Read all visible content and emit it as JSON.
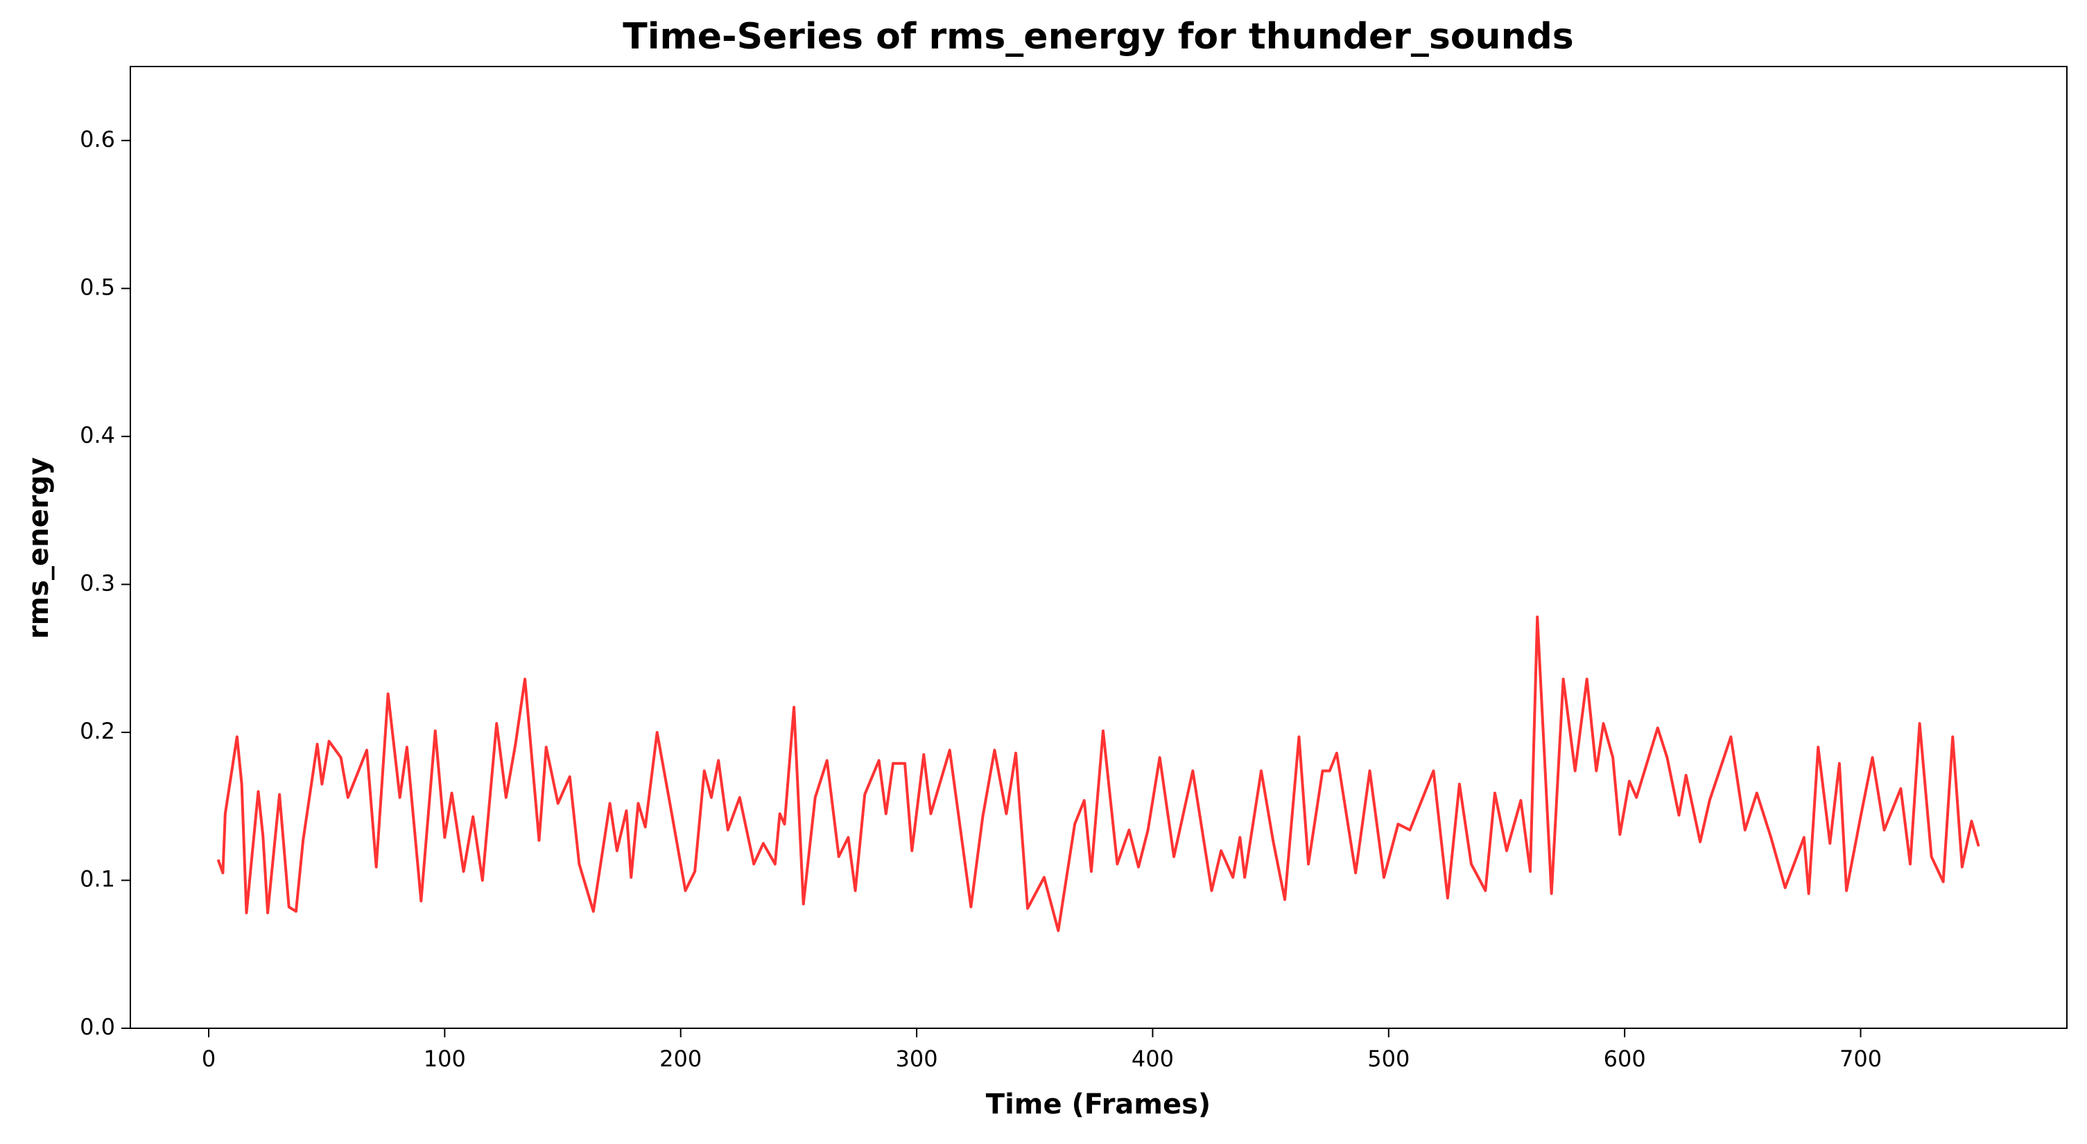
{
  "chart_data": {
    "type": "line",
    "title": "Time-Series of rms_energy for thunder_sounds",
    "x_label": "Time (Frames)",
    "y_label": "rms_energy",
    "x": [
      4,
      6,
      7,
      12,
      14,
      16,
      21,
      23,
      25,
      30,
      34,
      37,
      40,
      46,
      48,
      51,
      56,
      59,
      67,
      71,
      76,
      81,
      84,
      90,
      96,
      100,
      103,
      108,
      112,
      116,
      122,
      126,
      130,
      134,
      140,
      143,
      148,
      153,
      157,
      163,
      170,
      173,
      177,
      179,
      182,
      185,
      190,
      196,
      202,
      206,
      210,
      213,
      216,
      220,
      225,
      231,
      235,
      240,
      242,
      244,
      248,
      252,
      257,
      262,
      267,
      271,
      274,
      278,
      284,
      287,
      290,
      295,
      298,
      303,
      306,
      314,
      323,
      328,
      333,
      338,
      342,
      347,
      354,
      360,
      367,
      371,
      374,
      379,
      385,
      390,
      394,
      398,
      403,
      409,
      417,
      425,
      429,
      434,
      437,
      439,
      446,
      451,
      456,
      462,
      466,
      472,
      475,
      478,
      486,
      492,
      498,
      504,
      509,
      519,
      525,
      530,
      535,
      541,
      545,
      550,
      556,
      560,
      563,
      569,
      574,
      579,
      584,
      588,
      591,
      595,
      598,
      602,
      605,
      614,
      618,
      623,
      626,
      632,
      636,
      645,
      651,
      656,
      662,
      668,
      676,
      678,
      682,
      687,
      691,
      694,
      700,
      705,
      710,
      717,
      721,
      725,
      730,
      735,
      739,
      743,
      747,
      750
    ],
    "series": [
      {
        "name": "rms_energy",
        "color": "#ff3333",
        "values": [
          0.114,
          0.105,
          0.145,
          0.197,
          0.165,
          0.078,
          0.16,
          0.13,
          0.078,
          0.158,
          0.082,
          0.079,
          0.127,
          0.192,
          0.165,
          0.194,
          0.183,
          0.156,
          0.188,
          0.109,
          0.226,
          0.156,
          0.19,
          0.086,
          0.201,
          0.129,
          0.159,
          0.106,
          0.143,
          0.1,
          0.206,
          0.156,
          0.192,
          0.236,
          0.127,
          0.19,
          0.152,
          0.17,
          0.111,
          0.079,
          0.152,
          0.12,
          0.147,
          0.102,
          0.152,
          0.136,
          0.2,
          0.147,
          0.093,
          0.106,
          0.174,
          0.156,
          0.181,
          0.134,
          0.156,
          0.111,
          0.125,
          0.111,
          0.145,
          0.138,
          0.217,
          0.084,
          0.156,
          0.181,
          0.116,
          0.129,
          0.093,
          0.158,
          0.181,
          0.145,
          0.179,
          0.179,
          0.12,
          0.185,
          0.145,
          0.188,
          0.082,
          0.143,
          0.188,
          0.145,
          0.186,
          0.081,
          0.102,
          0.066,
          0.138,
          0.154,
          0.106,
          0.201,
          0.111,
          0.134,
          0.109,
          0.134,
          0.183,
          0.116,
          0.174,
          0.093,
          0.12,
          0.102,
          0.129,
          0.102,
          0.174,
          0.127,
          0.087,
          0.197,
          0.111,
          0.174,
          0.174,
          0.186,
          0.105,
          0.174,
          0.102,
          0.138,
          0.134,
          0.174,
          0.088,
          0.165,
          0.111,
          0.093,
          0.159,
          0.12,
          0.154,
          0.106,
          0.278,
          0.091,
          0.236,
          0.174,
          0.236,
          0.174,
          0.206,
          0.183,
          0.131,
          0.167,
          0.156,
          0.203,
          0.183,
          0.144,
          0.171,
          0.126,
          0.154,
          0.197,
          0.134,
          0.159,
          0.129,
          0.095,
          0.129,
          0.091,
          0.19,
          0.125,
          0.179,
          0.093,
          0.143,
          0.183,
          0.134,
          0.162,
          0.111,
          0.206,
          0.116,
          0.099,
          0.197,
          0.109,
          0.14,
          0.123
        ]
      }
    ],
    "xlim": [
      -33.2,
      787.4
    ],
    "ylim": [
      0,
      0.65
    ],
    "xticks": [
      0,
      100,
      200,
      300,
      400,
      500,
      600,
      700
    ],
    "yticks": [
      {
        "value": 0,
        "label": "0.0"
      },
      0.1,
      0.2,
      0.3,
      0.4,
      0.5,
      0.6
    ],
    "grid": false
  }
}
